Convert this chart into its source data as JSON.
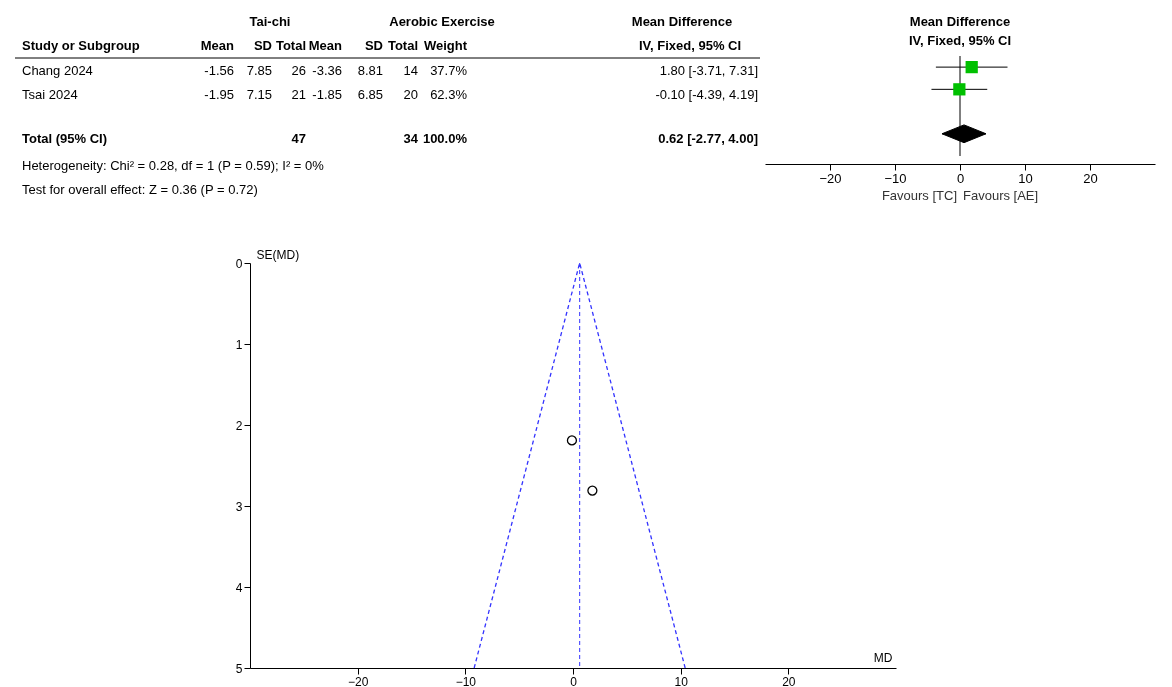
{
  "chart_data": [
    {
      "type": "other",
      "annotations": [
        "Tai-chi",
        "Aerobic Exercise",
        "Mean Difference",
        "Study or Subgroup",
        "Mean",
        "SD",
        "Total",
        "Mean",
        "SD",
        "Total",
        "Weight",
        "IV, Fixed, 95% CI",
        "Chang 2024",
        "-1.56",
        "7.85",
        "26",
        "-3.36",
        "8.81",
        "14",
        "37.7%",
        "1.80 [-3.71, 7.31]",
        "Tsai 2024",
        "-1.95",
        "7.15",
        "21",
        "-1.85",
        "6.85",
        "20",
        "62.3%",
        "-0.10 [-4.39, 4.19]",
        "Total (95% CI)",
        "47",
        "34",
        "100.0%",
        "0.62 [-2.77, 4.00]",
        "Heterogeneity: Chi² = 0.28, df = 1 (P = 0.59); I² = 0%",
        "Test for overall effect: Z = 0.36 (P = 0.72)"
      ]
    },
    {
      "type": "scatter",
      "title": "Mean Difference",
      "subtitle": "IV, Fixed, 95% CI",
      "orientation": "horizontal",
      "tick_labels": "x",
      "categories": [
        null,
        null,
        null,
        null
      ],
      "series": [
        {
          "type": "scatter",
          "color": "#00c000",
          "marker": "square",
          "values": [
            1.8,
            -0.1,
            null,
            null
          ],
          "errors": [
            [
              -3.71,
              7.31
            ],
            [
              -4.39,
              4.19
            ],
            null,
            null
          ]
        },
        {
          "type": "scatter",
          "color": "#000000",
          "marker": "diamond",
          "values": [
            null,
            null,
            null,
            0.62
          ],
          "errors": [
            null,
            null,
            null,
            [
              -2.77,
              4.0
            ]
          ]
        }
      ],
      "xlim": [
        -30,
        30
      ],
      "xticks": [
        -20,
        -10,
        0,
        10,
        20
      ],
      "ref_lines": [
        {
          "axis": "x",
          "value": 0,
          "color": "#000000"
        }
      ],
      "annotations": [
        "Favours [TC]",
        "Favours [AE]"
      ]
    },
    {
      "type": "scatter",
      "xlabel": "MD",
      "ylabel": "SE(MD)",
      "series": [
        {
          "type": "scatter",
          "color": "#000000",
          "marker": "circle",
          "x": [
            1.8,
            -0.1
          ],
          "values": [
            2.81,
            2.19
          ]
        },
        {
          "type": "line",
          "color": "#3333ff",
          "line_style": "dashed",
          "x": [
            -9.18,
            0.62,
            10.42
          ],
          "values": [
            5,
            0,
            5
          ]
        }
      ],
      "xlim": [
        -30,
        30
      ],
      "xticks": [
        -20,
        -10,
        0,
        10,
        20
      ],
      "ylim": [
        5,
        0
      ],
      "yticks": [
        0,
        1,
        2,
        3,
        4,
        5
      ],
      "ref_lines": [
        {
          "axis": "x",
          "value": 0.62,
          "color": "#3333ff",
          "line_style": "dashed"
        }
      ]
    }
  ]
}
